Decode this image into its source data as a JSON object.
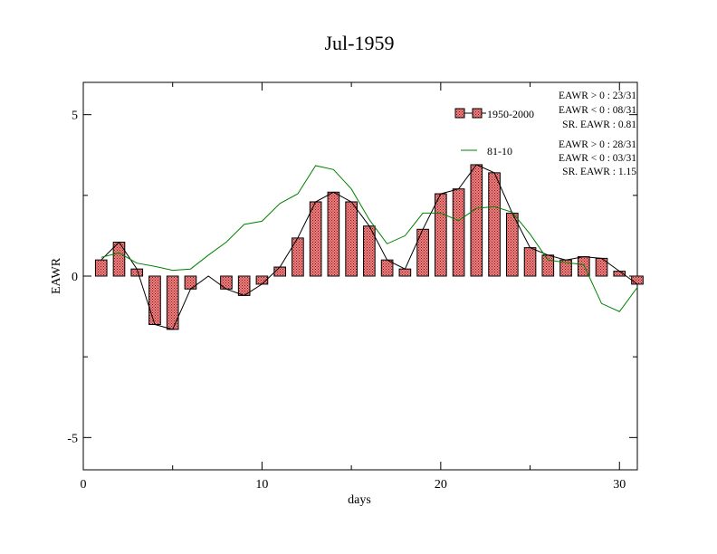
{
  "chart_data": {
    "type": "bar",
    "title": "Jul-1959",
    "xlabel": "days",
    "ylabel": "EAWR",
    "xlim": [
      0,
      31
    ],
    "ylim": [
      -6,
      6
    ],
    "xticks": [
      0,
      10,
      20,
      30
    ],
    "xtick_labels": [
      "0",
      "10",
      "20",
      "30"
    ],
    "yticks": [
      -5,
      0,
      5
    ],
    "ytick_labels": [
      "-5",
      "0",
      "5"
    ],
    "legend_position": "top-right",
    "colors": {
      "bar_fill": "#f08080",
      "bar_pattern_dot": "#7a1a1a",
      "bar_stroke": "#000000",
      "line_1950_2000": "#000000",
      "line_81_10": "#008000"
    },
    "x": [
      1,
      2,
      3,
      4,
      5,
      6,
      7,
      8,
      9,
      10,
      11,
      12,
      13,
      14,
      15,
      16,
      17,
      18,
      19,
      20,
      21,
      22,
      23,
      24,
      25,
      26,
      27,
      28,
      29,
      30,
      31
    ],
    "series": [
      {
        "name": "1950-2000",
        "kind": "bar+line",
        "values": [
          0.5,
          1.05,
          0.22,
          -1.5,
          -1.65,
          -0.4,
          0.0,
          -0.4,
          -0.6,
          -0.25,
          0.28,
          1.18,
          2.3,
          2.6,
          2.3,
          1.55,
          0.5,
          0.22,
          1.45,
          2.55,
          2.7,
          3.45,
          3.2,
          1.95,
          0.88,
          0.65,
          0.5,
          0.6,
          0.55,
          0.15,
          -0.25
        ]
      },
      {
        "name": "81-10",
        "kind": "line",
        "values": [
          0.58,
          0.72,
          0.4,
          0.3,
          0.18,
          0.22,
          0.65,
          1.05,
          1.6,
          1.7,
          2.25,
          2.55,
          3.42,
          3.3,
          2.7,
          1.75,
          1.0,
          1.25,
          1.95,
          1.95,
          1.72,
          2.1,
          2.15,
          1.98,
          1.3,
          0.5,
          0.42,
          0.35,
          -0.85,
          -1.1,
          -0.35
        ]
      }
    ],
    "legend": [
      {
        "label": "1950-2000",
        "stats": [
          "EAWR > 0 : 23/31",
          "EAWR < 0 : 08/31",
          "SR. EAWR :  0.81"
        ]
      },
      {
        "label": "81-10",
        "stats": [
          "EAWR > 0 : 28/31",
          "EAWR < 0 : 03/31",
          "SR. EAWR :  1.15"
        ]
      }
    ]
  }
}
